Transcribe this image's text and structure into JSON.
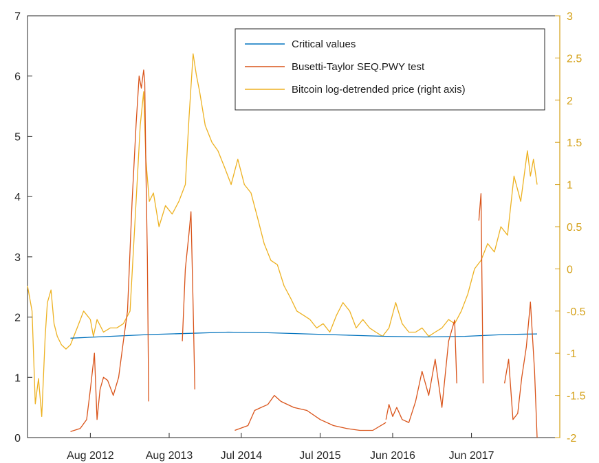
{
  "chart_data": {
    "type": "line",
    "x_tick_labels": [
      "Aug 2012",
      "Aug 2013",
      "Jul 2014",
      "Jul 2015",
      "Jun 2016",
      "Jun 2017"
    ],
    "x_ticks": [
      "2012-08-01",
      "2013-08-01",
      "2014-07-01",
      "2015-07-01",
      "2016-06-01",
      "2017-06-01"
    ],
    "xlim": [
      "2011-10-15",
      "2018-07-15"
    ],
    "left_axis": {
      "ylim": [
        0,
        7
      ],
      "ticks": [
        0,
        1,
        2,
        3,
        4,
        5,
        6,
        7
      ],
      "tick_labels": [
        "0",
        "1",
        "2",
        "3",
        "4",
        "5",
        "6",
        "7"
      ],
      "color": "#262626"
    },
    "right_axis": {
      "ylim": [
        -2,
        3
      ],
      "ticks": [
        -2,
        -1.5,
        -1,
        -0.5,
        0,
        0.5,
        1,
        1.5,
        2,
        2.5,
        3
      ],
      "tick_labels": [
        "-2",
        "-1.5",
        "-1",
        "-0.5",
        "0",
        "0.5",
        "1",
        "1.5",
        "2",
        "2.5",
        "3"
      ],
      "color": "#D4A017"
    },
    "legend": {
      "position": "top-right"
    },
    "series": [
      {
        "name": "Critical values",
        "axis": "left",
        "color": "#0072BD",
        "x": [
          "2012-05-01",
          "2012-11-01",
          "2013-05-01",
          "2013-11-01",
          "2014-05-01",
          "2014-11-01",
          "2015-05-01",
          "2015-11-01",
          "2016-05-01",
          "2016-11-01",
          "2017-05-01",
          "2017-11-01",
          "2018-04-01"
        ],
        "y": [
          1.65,
          1.68,
          1.71,
          1.73,
          1.75,
          1.74,
          1.72,
          1.7,
          1.68,
          1.67,
          1.68,
          1.71,
          1.72
        ]
      },
      {
        "name": "Busetti-Taylor SEQ.PWY test",
        "axis": "left",
        "color": "#D95319",
        "segments": [
          {
            "x": [
              "2012-05-01",
              "2012-06-15",
              "2012-07-15",
              "2012-08-01",
              "2012-08-20",
              "2012-09-01",
              "2012-09-15",
              "2012-10-01",
              "2012-10-20",
              "2012-11-15",
              "2012-12-10",
              "2013-01-01",
              "2013-01-20",
              "2013-02-10",
              "2013-03-01",
              "2013-03-15",
              "2013-03-25",
              "2013-04-05",
              "2013-04-10",
              "2013-04-15",
              "2013-04-22",
              "2013-04-28"
            ],
            "y": [
              0.1,
              0.15,
              0.3,
              0.8,
              1.4,
              0.3,
              0.8,
              1.0,
              0.95,
              0.7,
              1.0,
              1.6,
              2.1,
              3.9,
              5.2,
              6.0,
              5.8,
              6.1,
              5.9,
              4.5,
              3.0,
              0.6
            ]
          },
          {
            "x": [
              "2013-10-01",
              "2013-10-15",
              "2013-11-01",
              "2013-11-10",
              "2013-11-20",
              "2013-11-28"
            ],
            "y": [
              1.6,
              2.8,
              3.4,
              3.75,
              2.2,
              0.8
            ]
          },
          {
            "x": [
              "2014-06-01",
              "2014-08-01",
              "2014-09-01",
              "2014-10-01",
              "2014-11-01",
              "2014-12-01",
              "2015-01-01",
              "2015-03-01",
              "2015-05-01",
              "2015-07-01",
              "2015-09-01",
              "2015-11-01",
              "2016-01-01",
              "2016-03-01",
              "2016-05-01"
            ],
            "y": [
              0.12,
              0.2,
              0.45,
              0.5,
              0.55,
              0.7,
              0.6,
              0.5,
              0.45,
              0.3,
              0.2,
              0.15,
              0.12,
              0.12,
              0.25
            ]
          },
          {
            "x": [
              "2016-05-01",
              "2016-05-15",
              "2016-06-01",
              "2016-06-20",
              "2016-07-15",
              "2016-08-15",
              "2016-09-15",
              "2016-10-15",
              "2016-11-15",
              "2016-12-15",
              "2017-01-15",
              "2017-02-15",
              "2017-03-15",
              "2017-03-25"
            ],
            "y": [
              0.3,
              0.55,
              0.35,
              0.5,
              0.3,
              0.25,
              0.6,
              1.1,
              0.7,
              1.3,
              0.5,
              1.6,
              1.95,
              0.9
            ]
          },
          {
            "x": [
              "2017-07-05",
              "2017-07-15",
              "2017-07-25"
            ],
            "y": [
              3.6,
              4.05,
              0.9
            ]
          },
          {
            "x": [
              "2017-11-01",
              "2017-11-20",
              "2017-12-10",
              "2018-01-01",
              "2018-01-20",
              "2018-02-10",
              "2018-03-01",
              "2018-03-20",
              "2018-04-01"
            ],
            "y": [
              0.9,
              1.3,
              0.3,
              0.4,
              1.0,
              1.5,
              2.25,
              1.1,
              0.0
            ]
          }
        ]
      },
      {
        "name": "Bitcoin log-detrended price (right axis)",
        "axis": "right",
        "color": "#EDB120",
        "x": [
          "2011-10-15",
          "2011-11-05",
          "2011-11-20",
          "2011-12-05",
          "2011-12-20",
          "2012-01-05",
          "2012-01-15",
          "2012-02-01",
          "2012-02-15",
          "2012-03-01",
          "2012-03-20",
          "2012-04-10",
          "2012-05-01",
          "2012-06-01",
          "2012-07-01",
          "2012-08-01",
          "2012-08-15",
          "2012-09-01",
          "2012-10-01",
          "2012-11-01",
          "2012-12-01",
          "2013-01-01",
          "2013-02-01",
          "2013-03-01",
          "2013-03-20",
          "2013-04-05",
          "2013-04-15",
          "2013-05-01",
          "2013-05-20",
          "2013-06-15",
          "2013-07-15",
          "2013-08-15",
          "2013-09-15",
          "2013-10-15",
          "2013-11-01",
          "2013-11-20",
          "2013-12-05",
          "2013-12-20",
          "2014-01-15",
          "2014-02-15",
          "2014-03-15",
          "2014-04-15",
          "2014-05-15",
          "2014-06-15",
          "2014-07-15",
          "2014-08-15",
          "2014-09-15",
          "2014-10-15",
          "2014-11-15",
          "2014-12-15",
          "2015-01-15",
          "2015-02-15",
          "2015-03-15",
          "2015-04-15",
          "2015-05-15",
          "2015-06-15",
          "2015-07-15",
          "2015-08-15",
          "2015-09-15",
          "2015-10-15",
          "2015-11-15",
          "2015-12-15",
          "2016-01-15",
          "2016-02-15",
          "2016-03-15",
          "2016-04-15",
          "2016-05-15",
          "2016-06-15",
          "2016-07-15",
          "2016-08-15",
          "2016-09-15",
          "2016-10-15",
          "2016-11-15",
          "2016-12-15",
          "2017-01-15",
          "2017-02-15",
          "2017-03-15",
          "2017-04-15",
          "2017-05-15",
          "2017-06-15",
          "2017-07-15",
          "2017-08-15",
          "2017-09-15",
          "2017-10-15",
          "2017-11-15",
          "2017-12-15",
          "2018-01-15",
          "2018-02-15",
          "2018-03-01",
          "2018-03-15",
          "2018-04-01"
        ],
        "y": [
          -0.2,
          -0.5,
          -1.6,
          -1.3,
          -1.75,
          -0.8,
          -0.4,
          -0.25,
          -0.65,
          -0.8,
          -0.9,
          -0.95,
          -0.9,
          -0.7,
          -0.5,
          -0.6,
          -0.8,
          -0.6,
          -0.75,
          -0.7,
          -0.7,
          -0.65,
          -0.5,
          0.8,
          1.7,
          2.1,
          1.3,
          0.8,
          0.9,
          0.5,
          0.75,
          0.65,
          0.8,
          1.0,
          1.8,
          2.55,
          2.3,
          2.1,
          1.7,
          1.5,
          1.4,
          1.2,
          1.0,
          1.3,
          1.0,
          0.9,
          0.6,
          0.3,
          0.1,
          0.05,
          -0.2,
          -0.35,
          -0.5,
          -0.55,
          -0.6,
          -0.7,
          -0.65,
          -0.75,
          -0.55,
          -0.4,
          -0.5,
          -0.7,
          -0.6,
          -0.7,
          -0.75,
          -0.8,
          -0.7,
          -0.4,
          -0.65,
          -0.75,
          -0.75,
          -0.7,
          -0.8,
          -0.75,
          -0.7,
          -0.6,
          -0.65,
          -0.5,
          -0.3,
          0.0,
          0.1,
          0.3,
          0.2,
          0.5,
          0.4,
          1.1,
          0.8,
          1.4,
          1.1,
          1.3,
          1.0
        ]
      }
    ]
  }
}
